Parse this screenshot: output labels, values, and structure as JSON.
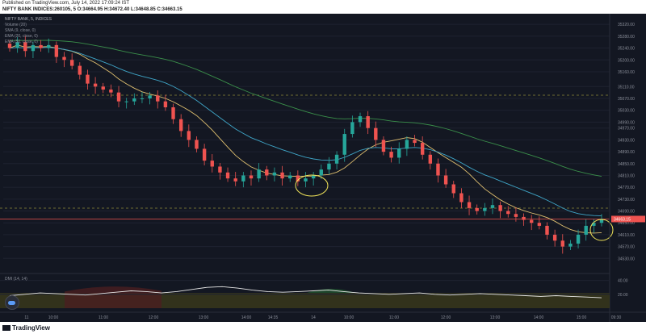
{
  "header": {
    "published_line": "Published on TradingView.com, July 14, 2022 17:09:24 IST",
    "symbol_line": "NIFTY BANK INDICES:260105, 5  O:34664.95 H:34672.40 L:34648.85 C:34663.15"
  },
  "legend": {
    "symbol": "NIFTY BANK, 5, INDICES",
    "items": [
      "Volume (20)",
      "SMA (9, close, 0)",
      "EMA (20, close, 0)",
      "EMA (50, close, 0)"
    ]
  },
  "chart_data": [
    {
      "type": "candlestick",
      "title": "NIFTY BANK, 5, INDICES",
      "ylabel": "",
      "ylim": [
        34490,
        35345
      ],
      "y_ticks": [
        35320,
        35280,
        35240,
        35200,
        35160,
        35110,
        35070,
        35030,
        34990,
        34970,
        34930,
        34890,
        34850,
        34810,
        34770,
        34730,
        34690,
        34650,
        34610,
        34570,
        34530
      ],
      "x_ticks": [
        "11",
        "10:00",
        "11:00",
        "12:00",
        "13:00",
        "14:00",
        "14:35",
        "14",
        "10:00",
        "11:00",
        "12:00",
        "13:00",
        "14:00",
        "15:00",
        "09:30"
      ],
      "last_price": "34663.15",
      "grid": true,
      "ohlc_close_path": [
        35240,
        35260,
        35230,
        35250,
        35240,
        35250,
        35210,
        35200,
        35180,
        35150,
        35120,
        35110,
        35100,
        35090,
        35060,
        35060,
        35070,
        35070,
        35080,
        35060,
        35040,
        35000,
        34960,
        34930,
        34900,
        34860,
        34840,
        34820,
        34800,
        34790,
        34810,
        34800,
        34830,
        34810,
        34820,
        34800,
        34810,
        34790,
        34800,
        34810,
        34830,
        34850,
        34880,
        34950,
        34990,
        35010,
        34970,
        34930,
        34890,
        34870,
        34900,
        34930,
        34920,
        34880,
        34850,
        34810,
        34780,
        34750,
        34720,
        34700,
        34690,
        34700,
        34710,
        34690,
        34680,
        34670,
        34660,
        34650,
        34640,
        34610,
        34590,
        34570,
        34580,
        34610,
        34640,
        34650,
        34663
      ]
    },
    {
      "type": "line",
      "title": "DMI (14, 14)",
      "ylim": [
        0,
        50
      ],
      "y_ticks": [
        40,
        20
      ],
      "series": [
        {
          "values": [
            18,
            20,
            22,
            21,
            20,
            19,
            21,
            23,
            25,
            24,
            22,
            24,
            27,
            30,
            31,
            29,
            26,
            24,
            23,
            24,
            25,
            26,
            24,
            22,
            21,
            20,
            21,
            22,
            20,
            19,
            20,
            21,
            20,
            19,
            18,
            17,
            18,
            17,
            16,
            15
          ]
        }
      ]
    }
  ],
  "colors": {
    "background": "#131722",
    "up": "#26a69a",
    "down": "#ef5350",
    "sma": "#e0c070",
    "ema20": "#3fa6c8",
    "ema50": "#3a8f4a",
    "annotation": "#f5e85b",
    "price_line": "#ef5350"
  },
  "footer": {
    "brand": "TradingView"
  }
}
